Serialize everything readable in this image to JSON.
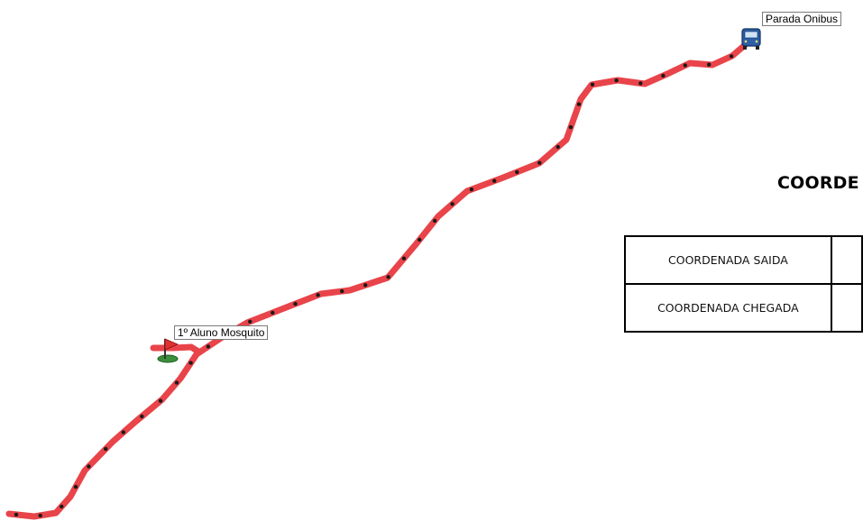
{
  "map": {
    "route_color": "#e8444a",
    "route_dot_color": "#1a1a1a",
    "origin_label": "1º Aluno Mosquito",
    "origin_icon": "flag-icon",
    "destination_label": "Parada Onibus",
    "destination_icon": "bus-icon"
  },
  "panel": {
    "title": "COORDE",
    "rows": [
      {
        "label": "COORDENADA SAIDA",
        "value": ""
      },
      {
        "label": "COORDENADA CHEGADA",
        "value": ""
      }
    ]
  }
}
